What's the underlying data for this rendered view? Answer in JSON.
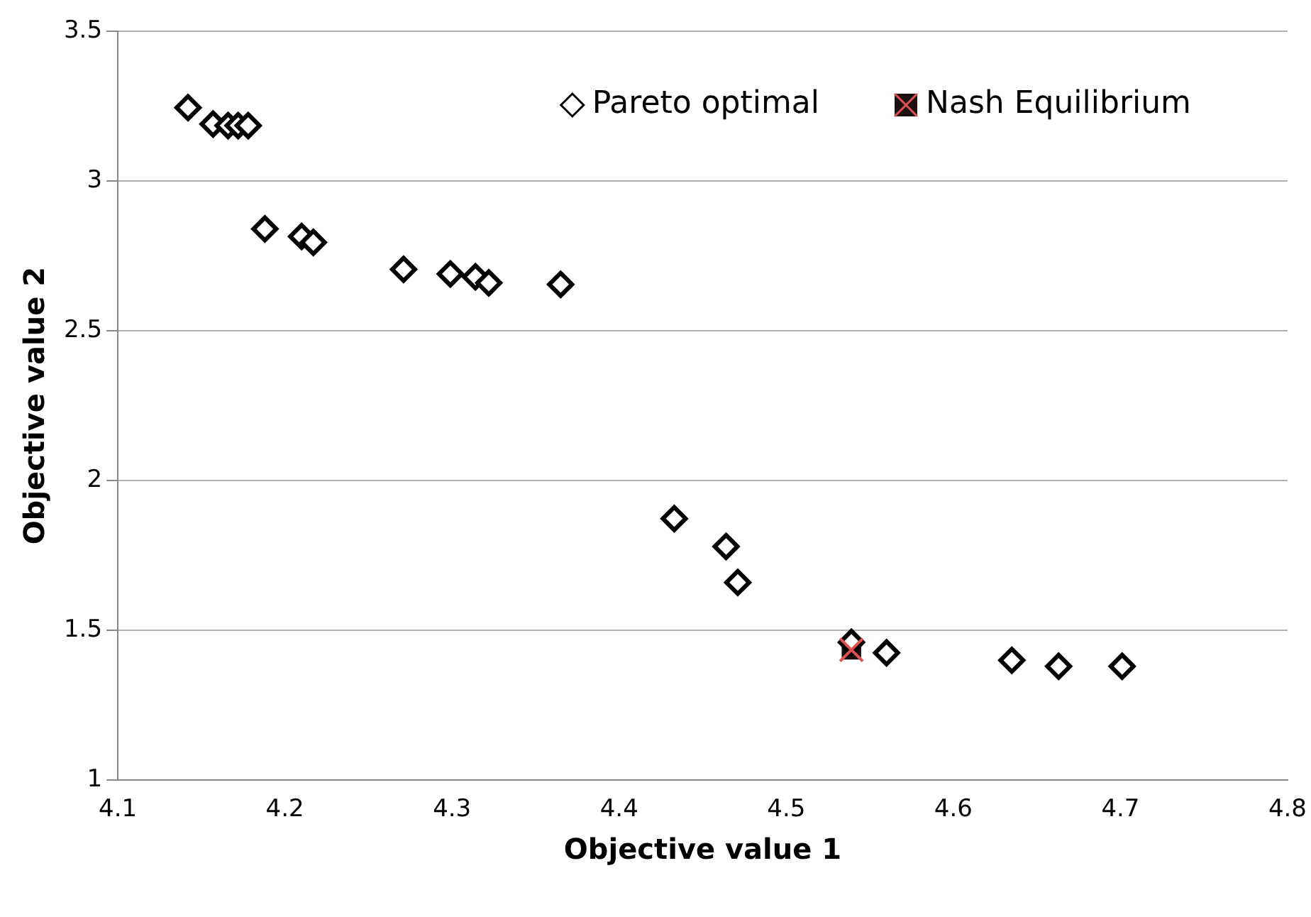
{
  "chart_data": {
    "type": "scatter",
    "xlabel": "Objective value 1",
    "ylabel": "Objective value 2",
    "xlim": [
      4.1,
      4.8
    ],
    "xticks": [
      4.1,
      4.2,
      4.3,
      4.4,
      4.5,
      4.6,
      4.7,
      4.8
    ],
    "ylim": [
      1,
      3.5
    ],
    "yticks": [
      1,
      1.5,
      2,
      2.5,
      3,
      3.5
    ],
    "grid": "y",
    "legend": "top right",
    "series": [
      {
        "name": "Pareto optimal",
        "color": "#000000",
        "marker": "diamond",
        "x": [
          4.142,
          4.157,
          4.166,
          4.172,
          4.178,
          4.188,
          4.21,
          4.217,
          4.271,
          4.299,
          4.314,
          4.322,
          4.365,
          4.433,
          4.464,
          4.471,
          4.539,
          4.56,
          4.635,
          4.663,
          4.701
        ],
        "values": [
          3.245,
          3.19,
          3.185,
          3.185,
          3.185,
          2.84,
          2.815,
          2.795,
          2.705,
          2.69,
          2.68,
          2.66,
          2.655,
          1.873,
          1.78,
          1.66,
          1.46,
          1.425,
          1.4,
          1.38,
          1.38
        ]
      },
      {
        "name": "Nash Equilibrium",
        "color": "#1a1010",
        "marker": "square",
        "x": [
          4.539
        ],
        "values": [
          1.435
        ]
      }
    ]
  }
}
